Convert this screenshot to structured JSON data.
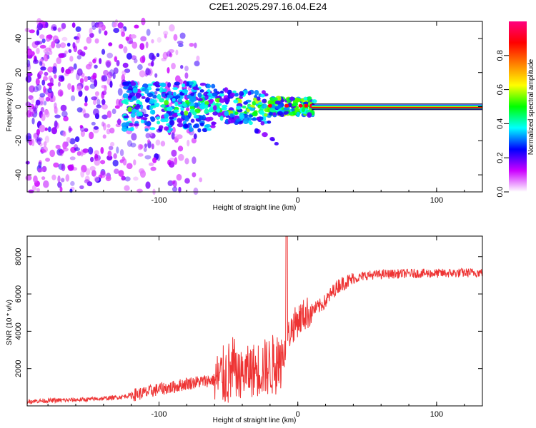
{
  "title": "C2E1.2025.297.16.04.E24",
  "chart_data": [
    {
      "type": "heatmap",
      "name": "spectrogram",
      "xlabel": "Height of straight line (km)",
      "ylabel": "Frequency (Hz)",
      "xlim": [
        -195,
        133
      ],
      "ylim": [
        -50,
        50
      ],
      "x_ticks": [
        -100,
        0,
        100
      ],
      "x_tick_labels": [
        "-100",
        "0",
        "100"
      ],
      "y_ticks": [
        -40,
        -20,
        0,
        20,
        40
      ],
      "y_tick_labels": [
        "-40",
        "-20",
        "0",
        "20",
        "40"
      ],
      "description_noise_region": [
        -195,
        -70
      ],
      "signal_line_freq_hz": 0,
      "signal_line_start_km": 10,
      "colorbar": {
        "label": "Normalized spectral amplitude",
        "range": [
          0.0,
          1.0
        ],
        "ticks": [
          0.0,
          0.2,
          0.4,
          0.6,
          0.8
        ],
        "tick_labels": [
          "0.0",
          "0.2",
          "0.4",
          "0.6",
          "0.8"
        ],
        "colormap": [
          "#ffffff",
          "#cc00ff",
          "#0000ff",
          "#00ffff",
          "#00ff00",
          "#ffff00",
          "#ff8000",
          "#ff0000",
          "#ff0080"
        ]
      }
    },
    {
      "type": "line",
      "name": "snr",
      "xlabel": "Height of straight line (km)",
      "ylabel": "SNR (10 * v/v)",
      "xlim": [
        -195,
        133
      ],
      "ylim": [
        0,
        9100
      ],
      "x_ticks": [
        -100,
        0,
        100
      ],
      "x_tick_labels": [
        "-100",
        "0",
        "100"
      ],
      "y_ticks": [
        2000,
        4000,
        6000,
        8000
      ],
      "y_tick_labels": [
        "2000",
        "4000",
        "6000",
        "8000"
      ],
      "color": "#ee3333",
      "series": [
        {
          "name": "SNR",
          "x": [
            -195,
            -170,
            -150,
            -130,
            -110,
            -100,
            -90,
            -80,
            -70,
            -60,
            -50,
            -45,
            -40,
            -35,
            -30,
            -25,
            -20,
            -15,
            -10,
            -8,
            -5,
            0,
            5,
            10,
            15,
            20,
            25,
            30,
            40,
            50,
            60,
            80,
            100,
            133
          ],
          "y": [
            250,
            300,
            350,
            450,
            700,
            900,
            1000,
            1200,
            1300,
            1400,
            1700,
            1900,
            2000,
            2200,
            2300,
            2400,
            2500,
            2700,
            2900,
            3500,
            4100,
            4600,
            4900,
            5100,
            5300,
            5600,
            6100,
            6500,
            6800,
            7000,
            7050,
            7100,
            7100,
            7150
          ]
        }
      ]
    }
  ]
}
